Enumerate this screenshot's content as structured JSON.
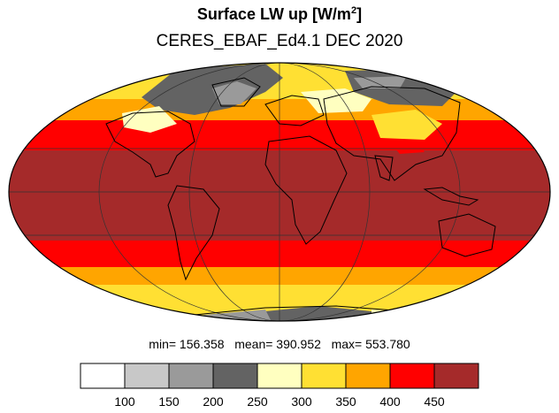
{
  "title": {
    "text": "Surface LW up [W/m",
    "superscript": "2",
    "suffix": "]"
  },
  "subtitle": "CERES_EBAF_Ed4.1 DEC 2020",
  "stats": {
    "min_label": "min=",
    "min": "156.358",
    "mean_label": "mean=",
    "mean": "390.952",
    "max_label": "max=",
    "max": "553.780"
  },
  "colorbar": {
    "colors": [
      "#ffffff",
      "#c8c8c8",
      "#9a9a9a",
      "#636363",
      "#ffffc0",
      "#ffe033",
      "#ffa500",
      "#ff0000",
      "#a52a2a"
    ],
    "tick_labels": [
      "100",
      "150",
      "200",
      "250",
      "300",
      "350",
      "400",
      "450"
    ]
  }
}
